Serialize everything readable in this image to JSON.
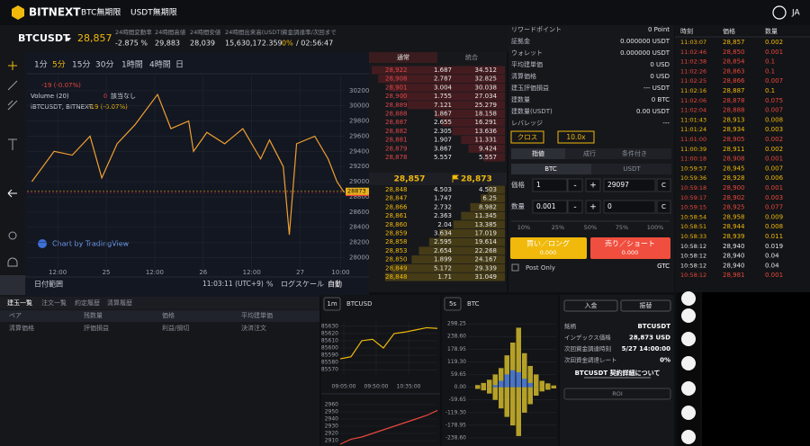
{
  "header": {
    "logo": "BITNEXT",
    "nav": [
      "BTC無期限",
      "USDT無期限"
    ],
    "lang": "JA"
  },
  "ticker": {
    "symbol": "BTCUSDT",
    "price": "28,857",
    "stats": [
      {
        "label": "24時間変動率",
        "value": "-2.875 %"
      },
      {
        "label": "24時間高値",
        "value": "29,883"
      },
      {
        "label": "24時間安値",
        "value": "28,039"
      },
      {
        "label": "24時間出来高(USDT)",
        "value": "15,630,172.359"
      },
      {
        "label": "資金調達率/次回まで",
        "value": "0%",
        "extra": "/ 02:56:47"
      }
    ]
  },
  "chart_toolbar": {
    "intervals": [
      "1分",
      "5分",
      "15分",
      "30分",
      "1時間",
      "4時間",
      "日"
    ],
    "active": 1
  },
  "chart_legend": {
    "change": "-19 (-0.07%)",
    "indicator": "Volume (20)",
    "indicator_value": "0",
    "indicator_note": "該当なし",
    "pair": "iBTCUSDT, BITNEXT",
    "pair_change": "-19 (-0.07%)"
  },
  "chart_footer": {
    "range": "日付範囲",
    "time": "11:03:11 (UTC+9)",
    "percent": "%",
    "log": "ログスケール",
    "auto": "自動",
    "watermark": "Chart by TradingView"
  },
  "chart_data": [
    {
      "type": "line",
      "color": "#f0a030",
      "x": [
        5.6,
        11.1,
        15.6,
        20,
        22.9,
        26.7,
        31.1,
        36.7,
        40,
        44.4,
        45.6,
        48.9,
        53.3,
        57.8,
        62.2,
        64.4,
        67.8,
        69.3,
        71.1,
        75.6,
        78.9,
        81.1,
        82.9
      ],
      "values": [
        29000,
        29400,
        29350,
        29600,
        29050,
        29500,
        29750,
        30150,
        29700,
        29800,
        29400,
        29650,
        29500,
        29700,
        29300,
        29550,
        29200,
        28300,
        29500,
        29600,
        29300,
        29000,
        28857
      ],
      "xlim": [
        4.4,
        83
      ],
      "ylim": [
        27850,
        30400
      ],
      "xticks": [
        {
          "value": 12,
          "label": "12:00"
        },
        {
          "value": 24,
          "label": "25"
        },
        {
          "value": 36,
          "label": "12:00"
        },
        {
          "value": 48,
          "label": "26"
        },
        {
          "value": 60,
          "label": "12:00"
        },
        {
          "value": 72,
          "label": "27"
        },
        {
          "value": 82,
          "label": "10:00"
        }
      ],
      "yticks": [
        30200,
        30000,
        29800,
        29600,
        29400,
        29200,
        29000,
        28800,
        28600,
        28400,
        28200,
        28000
      ],
      "last_price_labels": [
        {
          "value": 28857,
          "color": "#e03b3b"
        },
        {
          "value": 28873,
          "color": "#e8b21d"
        }
      ],
      "grid": true
    },
    {
      "type": "line",
      "interval": "1m",
      "title": "BTCUSD",
      "color": "#f0b90b",
      "x": [
        0,
        15,
        30,
        45,
        60,
        75,
        90,
        105,
        120,
        135
      ],
      "values": [
        85585,
        85588,
        85610,
        85612,
        85600,
        85620,
        85622,
        85625,
        85628,
        85627
      ],
      "xlim": [
        0,
        135
      ],
      "ylim": [
        85564,
        85636
      ],
      "xticks": [
        {
          "value": 5,
          "label": "09:05:00"
        },
        {
          "value": 50,
          "label": "09:50:00"
        },
        {
          "value": 95,
          "label": "10:35:00"
        }
      ],
      "yticks": [
        85630,
        85620,
        85610,
        85600,
        85590,
        85580,
        85570
      ],
      "grid": true
    },
    {
      "type": "line",
      "color": "#e8473c",
      "x": [
        0,
        15,
        30,
        45,
        60,
        75,
        90,
        105,
        120,
        135
      ],
      "values": [
        2905,
        2912,
        2915,
        2920,
        2925,
        2930,
        2935,
        2940,
        2945,
        2952
      ],
      "xlim": [
        0,
        135
      ],
      "ylim": [
        2905,
        2965
      ],
      "yticks": [
        2960,
        2950,
        2940,
        2930,
        2920,
        2910
      ],
      "grid": true
    },
    {
      "type": "bar",
      "interval": "5s",
      "title": "BTC",
      "ylim": [
        -260,
        320
      ],
      "yticks": [
        298.25,
        {
          "value": 238.6,
          "label": "238.60"
        },
        178.95,
        {
          "value": 119.3,
          "label": "119.30"
        },
        59.65,
        {
          "value": 0,
          "label": "0.00"
        },
        -59.65,
        {
          "value": -119.3,
          "label": "-119.30"
        },
        -178.95,
        {
          "value": -238.6,
          "label": "-238.60"
        }
      ],
      "series": [
        {
          "color": "#c8b02a",
          "values": [
            10,
            20,
            35,
            60,
            90,
            150,
            210,
            280,
            160,
            100,
            60,
            30,
            18,
            8
          ]
        },
        {
          "color": "#c8b02a",
          "values": [
            -8,
            -15,
            -30,
            -60,
            -100,
            -140,
            -180,
            -230,
            -120,
            -80,
            -40,
            -20,
            -12,
            -6
          ]
        },
        {
          "color": "#3d6fd6",
          "values": [
            0,
            0,
            0,
            10,
            30,
            60,
            80,
            70,
            40,
            20,
            0,
            0,
            0,
            0
          ]
        }
      ],
      "grid": true
    }
  ],
  "orderbook": {
    "tabs": [
      "通常",
      "統合"
    ],
    "asks": [
      [
        "28,922",
        "1.687",
        "34.512"
      ],
      [
        "28,908",
        "2.787",
        "32.825"
      ],
      [
        "28,901",
        "3.004",
        "30.038"
      ],
      [
        "28,900",
        "1.755",
        "27.034"
      ],
      [
        "28,889",
        "7.121",
        "25.279"
      ],
      [
        "28,888",
        "1.867",
        "18.158"
      ],
      [
        "28,887",
        "2.655",
        "16.291"
      ],
      [
        "28,882",
        "2.305",
        "13.636"
      ],
      [
        "28,881",
        "1.907",
        "11.331"
      ],
      [
        "28,879",
        "3.867",
        "9.424"
      ],
      [
        "28,878",
        "5.557",
        "5.557"
      ]
    ],
    "mid": {
      "last": "28,857",
      "mark": "28,873"
    },
    "bids": [
      [
        "28,848",
        "4.503",
        "4.503"
      ],
      [
        "28,847",
        "1.747",
        "6.25"
      ],
      [
        "28,866",
        "2.732",
        "8.982"
      ],
      [
        "28,861",
        "2.363",
        "11.345"
      ],
      [
        "28,860",
        "2.04",
        "13.385"
      ],
      [
        "28,859",
        "3.634",
        "17.019"
      ],
      [
        "28,858",
        "2.595",
        "19.614"
      ],
      [
        "28,853",
        "2.654",
        "22.268"
      ],
      [
        "28,850",
        "1.899",
        "24.167"
      ],
      [
        "28,849",
        "5.172",
        "29.339"
      ],
      [
        "28,848",
        "1.71",
        "31.049"
      ]
    ]
  },
  "order_form": {
    "account": [
      [
        "リワードポイント",
        "0 Point"
      ],
      [
        "証拠金",
        "0.000000 USDT"
      ],
      [
        "ウォレット",
        "0.000000 USDT"
      ],
      [
        "平均建単価",
        "0 USD"
      ],
      [
        "清算価格",
        "0 USD"
      ],
      [
        "建玉評価損益",
        "--- USDT"
      ],
      [
        "建数量",
        "0 BTC"
      ],
      [
        "建数量(USDT)",
        "0.00 USDT"
      ],
      [
        "レバレッジ",
        "---"
      ]
    ],
    "margin_mode": "クロス",
    "leverage": "10.0x",
    "order_types": [
      "指値",
      "成行",
      "条件付き"
    ],
    "units": [
      "BTC",
      "USDT"
    ],
    "price_label": "価格",
    "price_step": "1",
    "price": "29097",
    "qty_label": "数量",
    "qty_step": "0.001",
    "qty": "0",
    "minus": "-",
    "plus": "+",
    "clear": "C",
    "percents": [
      "10%",
      "25%",
      "50%",
      "75%",
      "100%"
    ],
    "buy": "買い／ロング",
    "buy_amount": "0.000",
    "sell": "売り／ショート",
    "sell_amount": "0.000",
    "post_only": "Post Only",
    "tif": "GTC"
  },
  "trades": {
    "headers": [
      "時刻",
      "価格",
      "数量"
    ],
    "rows": [
      {
        "time": "11:03:07",
        "price": "28,857",
        "qty": "0.002",
        "color": "#f0b90b"
      },
      {
        "time": "11:02:46",
        "price": "28,850",
        "qty": "0.001",
        "color": "#e8473c"
      },
      {
        "time": "11:02:38",
        "price": "28,854",
        "qty": "0.1",
        "color": "#e8473c"
      },
      {
        "time": "11:02:26",
        "price": "28,863",
        "qty": "0.1",
        "color": "#e8473c"
      },
      {
        "time": "11:02:25",
        "price": "28,866",
        "qty": "0.007",
        "color": "#e8473c"
      },
      {
        "time": "11:02:16",
        "price": "28,887",
        "qty": "0.1",
        "color": "#f0b90b"
      },
      {
        "time": "11:02:06",
        "price": "28,878",
        "qty": "0.075",
        "color": "#e8473c"
      },
      {
        "time": "11:02:04",
        "price": "28,888",
        "qty": "0.007",
        "color": "#e8473c"
      },
      {
        "time": "11:01:43",
        "price": "28,913",
        "qty": "0.008",
        "color": "#f0b90b"
      },
      {
        "time": "11:01:24",
        "price": "28,934",
        "qty": "0.003",
        "color": "#f0b90b"
      },
      {
        "time": "11:01:00",
        "price": "28,905",
        "qty": "0.002",
        "color": "#e8473c"
      },
      {
        "time": "11:00:39",
        "price": "28,911",
        "qty": "0.002",
        "color": "#f0b90b"
      },
      {
        "time": "11:00:18",
        "price": "28,908",
        "qty": "0.001",
        "color": "#e8473c"
      },
      {
        "time": "10:59:57",
        "price": "28,945",
        "qty": "0.007",
        "color": "#f0b90b"
      },
      {
        "time": "10:59:36",
        "price": "28,928",
        "qty": "0.006",
        "color": "#f0b90b"
      },
      {
        "time": "10:59:18",
        "price": "28,900",
        "qty": "0.001",
        "color": "#e8473c"
      },
      {
        "time": "10:59:17",
        "price": "28,902",
        "qty": "0.003",
        "color": "#e8473c"
      },
      {
        "time": "10:59:15",
        "price": "28,925",
        "qty": "0.077",
        "color": "#e8473c"
      },
      {
        "time": "10:58:54",
        "price": "28,958",
        "qty": "0.009",
        "color": "#f0b90b"
      },
      {
        "time": "10:58:51",
        "price": "28,944",
        "qty": "0.008",
        "color": "#f0b90b"
      },
      {
        "time": "10:58:33",
        "price": "28,939",
        "qty": "0.011",
        "color": "#f0b90b"
      },
      {
        "time": "10:58:12",
        "price": "28,940",
        "qty": "0.019",
        "color": "#e6e6e6"
      },
      {
        "time": "10:58:12",
        "price": "28,940",
        "qty": "0.04",
        "color": "#e6e6e6"
      },
      {
        "time": "10:58:12",
        "price": "28,940",
        "qty": "0.04",
        "color": "#e6e6e6"
      },
      {
        "time": "10:58:12",
        "price": "28,981",
        "qty": "0.001",
        "color": "#e8473c"
      }
    ]
  },
  "positions": {
    "tabs": [
      "建玉一覧",
      "注文一覧",
      "約定履歴",
      "清算履歴"
    ],
    "headers": [
      "ペア",
      "残数量",
      "価格",
      "平均建単価"
    ],
    "headers2": [
      "清算価格",
      "評価損益",
      "利益/損切",
      "決済注文"
    ]
  },
  "info": {
    "buttons": [
      "入金",
      "振替"
    ],
    "rows": [
      [
        "銘柄",
        "BTCUSDT"
      ],
      [
        "インデックス価格",
        "28,873 USD"
      ],
      [
        "次回資金調達時刻",
        "5/27 14:00:00"
      ],
      [
        "次回資金調達レート",
        "0%"
      ]
    ],
    "link": "BTCUSDT 契約詳細について",
    "roi": "ROI"
  }
}
